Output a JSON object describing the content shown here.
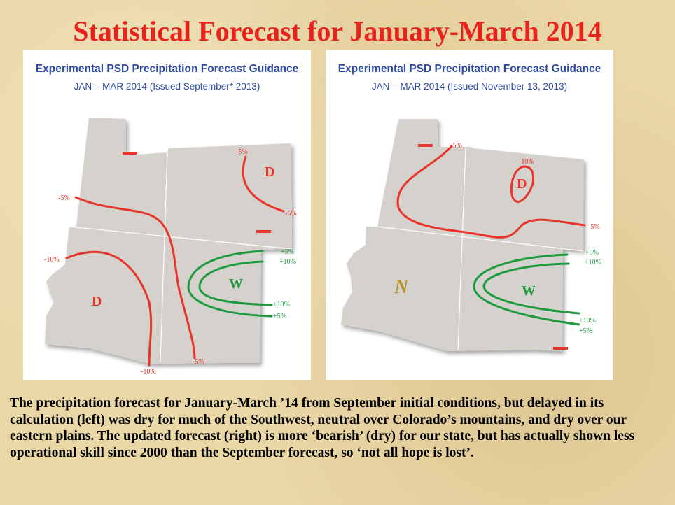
{
  "title": "Statistical Forecast for January-March 2014",
  "left_panel": {
    "title": "Experimental PSD Precipitation Forecast Guidance",
    "subtitle": "JAN – MAR 2014 (Issued September* 2013)",
    "labels": {
      "minus5_ut": "-5%",
      "minus5_ne": "-5%",
      "minus5_e": "-5%",
      "minus10_az": "-10%",
      "minus10_s": "-10%",
      "minus5_s": "-5%",
      "plus5_top": "+5%",
      "plus10_top": "+10%",
      "plus10_bot": "+10%",
      "plus5_bot": "+5%",
      "d_ne": "D",
      "d_az": "D",
      "w": "W"
    }
  },
  "right_panel": {
    "title": "Experimental PSD Precipitation Forecast Guidance",
    "subtitle": "JAN – MAR 2014 (Issued November 13, 2013)",
    "labels": {
      "minus5_nw": "-5%",
      "minus10": "-10%",
      "minus5_e": "-5%",
      "plus5_top": "+5%",
      "plus10_top": "+10%",
      "plus10_bot": "+10%",
      "plus5_bot": "+5%",
      "d": "D",
      "n": "N",
      "w": "W"
    }
  },
  "caption": "The precipitation forecast for January-March ’14 from September initial conditions, but delayed in its calculation (left) was dry for much of the Southwest, neutral over Colorado’s mountains, and dry over our eastern plains. The updated forecast (right) is more ‘bearish’ (dry) for our state, but has actually shown less operational skill since 2000 than the September forecast, so ‘not all hope is lost’.",
  "colors": {
    "title": "#e8231c",
    "panel_title": "#2e4aa0",
    "dry": "#e8342a",
    "wet": "#1f9a3e",
    "neutral": "#b5922e",
    "map_fill": "#d5d2ce"
  }
}
